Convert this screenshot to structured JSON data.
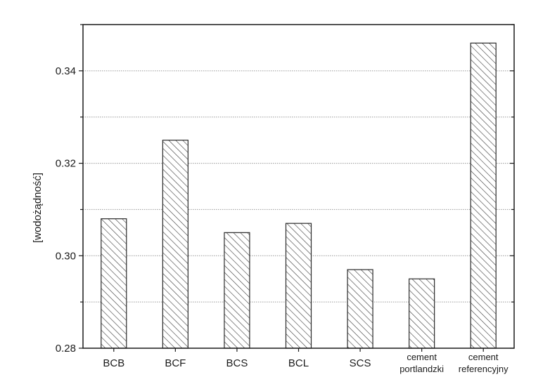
{
  "chart_data": {
    "type": "bar",
    "title": "",
    "xlabel": "",
    "ylabel": "[wodożądność]",
    "ylim": [
      0.28,
      0.35
    ],
    "yticks": [
      0.28,
      0.3,
      0.32,
      0.34
    ],
    "ytick_labels": [
      "0.28",
      "0.30",
      "0.32",
      "0.34"
    ],
    "grid_lines": [
      0.29,
      0.3,
      0.31,
      0.32,
      0.33,
      0.34
    ],
    "grid": "horizontal dotted",
    "bar_fill": "diagonal hatch",
    "colors": {
      "axis": "#1a1a1a",
      "grid": "#9a9a9a",
      "bar_edge": "#2a2a2a",
      "hatch": "#3a3a3a"
    },
    "categories": [
      [
        "BCB"
      ],
      [
        "BCF"
      ],
      [
        "BCS"
      ],
      [
        "BCL"
      ],
      [
        "SCS"
      ],
      [
        "cement",
        "portlandzki"
      ],
      [
        "cement",
        "referencyjny"
      ]
    ],
    "values": [
      0.308,
      0.325,
      0.305,
      0.307,
      0.297,
      0.295,
      0.346
    ]
  }
}
